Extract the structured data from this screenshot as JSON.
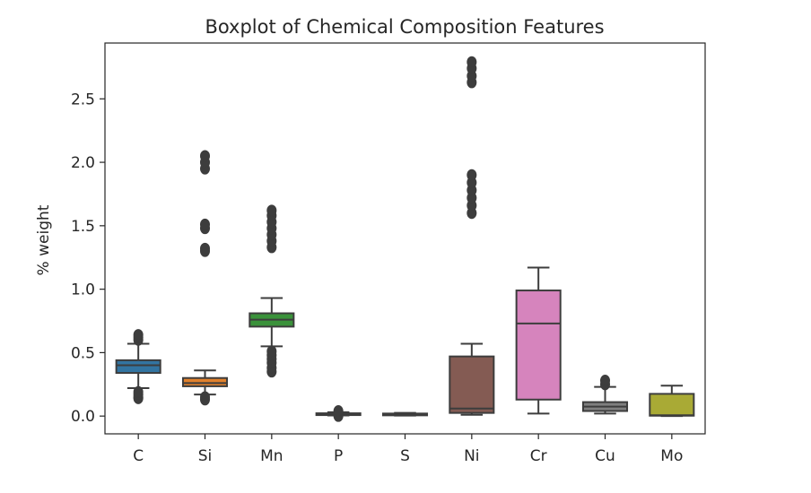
{
  "chart_data": {
    "type": "boxplot",
    "title": "Boxplot of Chemical Composition Features",
    "xlabel": "",
    "ylabel": "% weight",
    "ylim": [
      -0.14,
      2.94
    ],
    "yticks": [
      0.0,
      0.5,
      1.0,
      1.5,
      2.0,
      2.5
    ],
    "ytick_labels": [
      "0.0",
      "0.5",
      "1.0",
      "1.5",
      "2.0",
      "2.5"
    ],
    "grid": false,
    "legend": "none",
    "categories": [
      "C",
      "Si",
      "Mn",
      "P",
      "S",
      "Ni",
      "Cr",
      "Cu",
      "Mo"
    ],
    "colors": [
      "#3274a1",
      "#e1812c",
      "#3a923a",
      "#c03d3e",
      "#9372b2",
      "#845b53",
      "#d684bd",
      "#7f7f7f",
      "#a9aa35"
    ],
    "boxes": [
      {
        "name": "C",
        "whisker_low": 0.22,
        "q1": 0.34,
        "median": 0.4,
        "q3": 0.44,
        "whisker_high": 0.57,
        "outliers": [
          0.14,
          0.15,
          0.17,
          0.19,
          0.6,
          0.62,
          0.64
        ]
      },
      {
        "name": "Si",
        "whisker_low": 0.17,
        "q1": 0.235,
        "median": 0.26,
        "q3": 0.3,
        "whisker_high": 0.36,
        "outliers": [
          0.13,
          0.15,
          1.3,
          1.32,
          1.48,
          1.51,
          1.95,
          2.0,
          2.05
        ]
      },
      {
        "name": "Mn",
        "whisker_low": 0.55,
        "q1": 0.705,
        "median": 0.76,
        "q3": 0.81,
        "whisker_high": 0.93,
        "outliers": [
          0.35,
          0.38,
          0.42,
          0.45,
          0.48,
          0.51,
          1.33,
          1.38,
          1.43,
          1.48,
          1.53,
          1.58,
          1.62
        ]
      },
      {
        "name": "P",
        "whisker_low": 0.005,
        "q1": 0.012,
        "median": 0.017,
        "q3": 0.022,
        "whisker_high": 0.03,
        "outliers": [
          0.0,
          0.04
        ]
      },
      {
        "name": "S",
        "whisker_low": 0.004,
        "q1": 0.011,
        "median": 0.015,
        "q3": 0.02,
        "whisker_high": 0.025,
        "outliers": []
      },
      {
        "name": "Ni",
        "whisker_low": 0.01,
        "q1": 0.025,
        "median": 0.06,
        "q3": 0.47,
        "whisker_high": 0.57,
        "outliers": [
          1.6,
          1.66,
          1.72,
          1.78,
          1.84,
          1.9,
          2.63,
          2.68,
          2.74,
          2.79
        ]
      },
      {
        "name": "Cr",
        "whisker_low": 0.02,
        "q1": 0.13,
        "median": 0.73,
        "q3": 0.99,
        "whisker_high": 1.17,
        "outliers": []
      },
      {
        "name": "Cu",
        "whisker_low": 0.02,
        "q1": 0.04,
        "median": 0.075,
        "q3": 0.11,
        "whisker_high": 0.23,
        "outliers": [
          0.25,
          0.28
        ]
      },
      {
        "name": "Mo",
        "whisker_low": 0.0,
        "q1": 0.003,
        "median": 0.007,
        "q3": 0.175,
        "whisker_high": 0.24,
        "outliers": []
      }
    ]
  }
}
